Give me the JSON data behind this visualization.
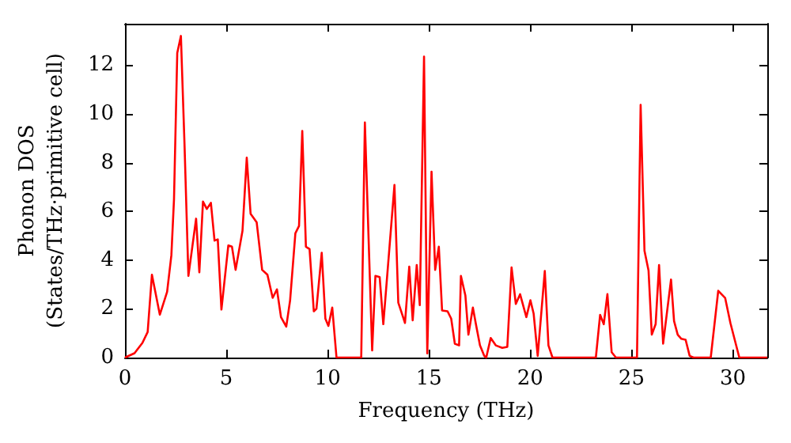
{
  "chart_data": {
    "type": "line",
    "xlabel": "Frequency (THz)",
    "ylabel": "Phonon DOS\n(States/THz·primitive cell)",
    "xlim": [
      0,
      31.7
    ],
    "ylim": [
      0,
      13.7
    ],
    "xticks": [
      0,
      5,
      10,
      15,
      20,
      25,
      30
    ],
    "yticks": [
      0,
      2,
      4,
      6,
      8,
      10,
      12
    ],
    "grid": false,
    "marker": "none",
    "line_style": "solid",
    "series": [
      {
        "color": "#ff0000",
        "x": [
          0,
          0.47,
          0.86,
          1.12,
          1.33,
          1.72,
          2.08,
          2.29,
          2.42,
          2.58,
          2.76,
          2.94,
          3.13,
          3.51,
          3.67,
          3.85,
          4.04,
          4.24,
          4.42,
          4.58,
          4.76,
          5.1,
          5.28,
          5.46,
          5.8,
          6.01,
          6.2,
          6.5,
          6.77,
          7.03,
          7.29,
          7.5,
          7.7,
          7.96,
          8.15,
          8.41,
          8.59,
          8.75,
          8.93,
          9.11,
          9.32,
          9.45,
          9.71,
          9.89,
          10.04,
          10.23,
          10.44,
          11.66,
          11.84,
          12.2,
          12.36,
          12.57,
          12.75,
          13.3,
          13.49,
          13.82,
          14.03,
          14.2,
          14.4,
          14.55,
          14.76,
          14.92,
          15.13,
          15.31,
          15.49,
          15.65,
          15.92,
          16.1,
          16.28,
          16.49,
          16.58,
          16.8,
          16.95,
          17.17,
          17.32,
          17.52,
          17.73,
          17.83,
          18.05,
          18.3,
          18.62,
          18.87,
          19.08,
          19.29,
          19.5,
          19.81,
          20.01,
          20.17,
          20.37,
          20.72,
          20.9,
          21.1,
          23.24,
          23.45,
          23.63,
          23.81,
          24.02,
          24.23,
          25.27,
          25.45,
          25.64,
          25.84,
          26.0,
          26.19,
          26.36,
          26.56,
          26.95,
          27.1,
          27.28,
          27.46,
          27.67,
          27.87,
          28.06,
          28.91,
          29.28,
          29.62,
          29.88,
          30.32,
          31.7
        ],
        "values": [
          0,
          0.18,
          0.6,
          1.05,
          3.4,
          1.76,
          2.7,
          4.2,
          6.5,
          12.5,
          13.2,
          8.7,
          3.35,
          5.7,
          3.5,
          6.4,
          6.1,
          6.35,
          4.8,
          4.85,
          1.97,
          4.6,
          4.55,
          3.6,
          5.2,
          8.2,
          5.9,
          5.55,
          3.6,
          3.4,
          2.45,
          2.8,
          1.66,
          1.27,
          2.35,
          5.1,
          5.4,
          9.3,
          4.55,
          4.45,
          1.9,
          2.0,
          4.3,
          1.6,
          1.3,
          2.05,
          0,
          0,
          9.65,
          0.29,
          3.35,
          3.3,
          1.37,
          7.08,
          2.25,
          1.42,
          3.73,
          1.53,
          3.8,
          2.15,
          12.35,
          0.17,
          7.63,
          3.6,
          4.55,
          1.93,
          1.9,
          1.6,
          0.57,
          0.5,
          3.35,
          2.55,
          0.94,
          2.05,
          1.37,
          0.5,
          0.07,
          0,
          0.8,
          0.5,
          0.4,
          0.44,
          3.7,
          2.2,
          2.6,
          1.66,
          2.35,
          1.8,
          0.07,
          3.55,
          0.5,
          0,
          0,
          1.75,
          1.37,
          2.6,
          0.22,
          0,
          0,
          10.37,
          4.38,
          3.57,
          0.94,
          1.37,
          3.8,
          0.57,
          3.2,
          1.5,
          0.94,
          0.77,
          0.73,
          0.07,
          0,
          0,
          2.74,
          2.45,
          1.42,
          0,
          0
        ]
      }
    ]
  }
}
